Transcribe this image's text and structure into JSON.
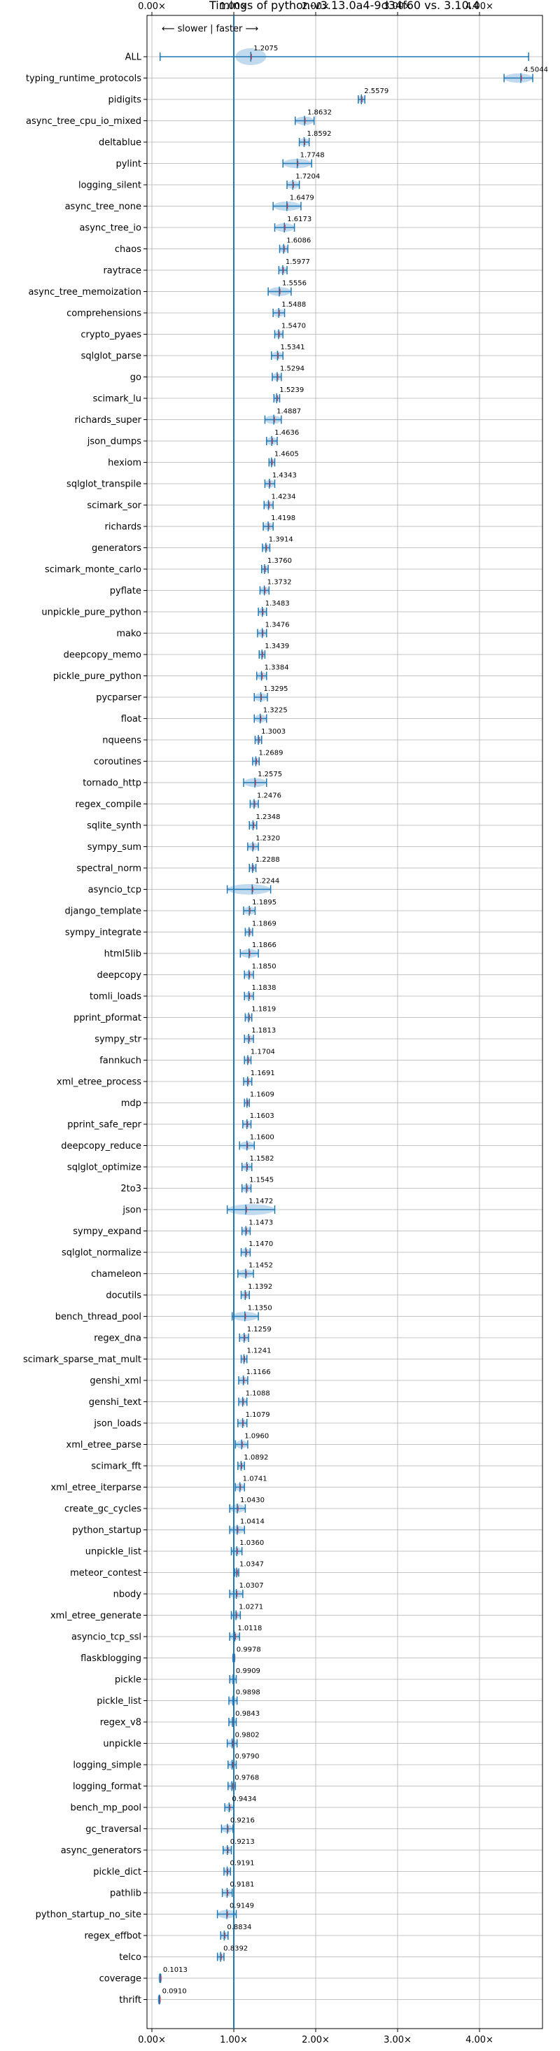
{
  "chart_data": {
    "type": "violin",
    "title": "Timings of python-v3.13.0a4-9d34f60 vs. 3.10.4",
    "subtitle": "⟵ slower | faster ⟶",
    "xlabel": "",
    "ylabel": "",
    "xlim": [
      0,
      4.5
    ],
    "xticks": [
      0,
      1,
      2,
      3,
      4
    ],
    "xtick_labels": [
      "0.00×",
      "1.00×",
      "2.00×",
      "3.00×",
      "4.00×"
    ],
    "reference_line": 1.0,
    "grid": true,
    "color": "#1f77b4",
    "fill_color": "#aecde8",
    "median_color": "#d62728",
    "benchmarks": [
      {
        "name": "ALL",
        "value": 1.2075,
        "value_label": "1.2075",
        "low": 0.1,
        "high": 4.6
      },
      {
        "name": "typing_runtime_protocols",
        "value": 4.5044,
        "value_label": "4.5044",
        "low": 4.3,
        "high": 4.65
      },
      {
        "name": "pidigits",
        "value": 2.5579,
        "value_label": "2.5579",
        "low": 2.52,
        "high": 2.6
      },
      {
        "name": "async_tree_cpu_io_mixed",
        "value": 1.8632,
        "value_label": "1.8632",
        "low": 1.75,
        "high": 1.98
      },
      {
        "name": "deltablue",
        "value": 1.8592,
        "value_label": "1.8592",
        "low": 1.8,
        "high": 1.92
      },
      {
        "name": "pylint",
        "value": 1.7748,
        "value_label": "1.7748",
        "low": 1.6,
        "high": 1.95
      },
      {
        "name": "logging_silent",
        "value": 1.7204,
        "value_label": "1.7204",
        "low": 1.65,
        "high": 1.8
      },
      {
        "name": "async_tree_none",
        "value": 1.6479,
        "value_label": "1.6479",
        "low": 1.48,
        "high": 1.82
      },
      {
        "name": "async_tree_io",
        "value": 1.6173,
        "value_label": "1.6173",
        "low": 1.5,
        "high": 1.74
      },
      {
        "name": "chaos",
        "value": 1.6086,
        "value_label": "1.6086",
        "low": 1.56,
        "high": 1.66
      },
      {
        "name": "raytrace",
        "value": 1.5977,
        "value_label": "1.5977",
        "low": 1.55,
        "high": 1.65
      },
      {
        "name": "async_tree_memoization",
        "value": 1.5556,
        "value_label": "1.5556",
        "low": 1.42,
        "high": 1.7
      },
      {
        "name": "comprehensions",
        "value": 1.5488,
        "value_label": "1.5488",
        "low": 1.48,
        "high": 1.62
      },
      {
        "name": "crypto_pyaes",
        "value": 1.547,
        "value_label": "1.5470",
        "low": 1.5,
        "high": 1.6
      },
      {
        "name": "sqlglot_parse",
        "value": 1.5341,
        "value_label": "1.5341",
        "low": 1.46,
        "high": 1.6
      },
      {
        "name": "go",
        "value": 1.5294,
        "value_label": "1.5294",
        "low": 1.47,
        "high": 1.58
      },
      {
        "name": "scimark_lu",
        "value": 1.5239,
        "value_label": "1.5239",
        "low": 1.49,
        "high": 1.56
      },
      {
        "name": "richards_super",
        "value": 1.4887,
        "value_label": "1.4887",
        "low": 1.38,
        "high": 1.58
      },
      {
        "name": "json_dumps",
        "value": 1.4636,
        "value_label": "1.4636",
        "low": 1.4,
        "high": 1.53
      },
      {
        "name": "hexiom",
        "value": 1.4605,
        "value_label": "1.4605",
        "low": 1.43,
        "high": 1.5
      },
      {
        "name": "sqlglot_transpile",
        "value": 1.4343,
        "value_label": "1.4343",
        "low": 1.38,
        "high": 1.5
      },
      {
        "name": "scimark_sor",
        "value": 1.4234,
        "value_label": "1.4234",
        "low": 1.37,
        "high": 1.48
      },
      {
        "name": "richards",
        "value": 1.4198,
        "value_label": "1.4198",
        "low": 1.36,
        "high": 1.48
      },
      {
        "name": "generators",
        "value": 1.3914,
        "value_label": "1.3914",
        "low": 1.35,
        "high": 1.44
      },
      {
        "name": "scimark_monte_carlo",
        "value": 1.376,
        "value_label": "1.3760",
        "low": 1.34,
        "high": 1.42
      },
      {
        "name": "pyflate",
        "value": 1.3732,
        "value_label": "1.3732",
        "low": 1.32,
        "high": 1.43
      },
      {
        "name": "unpickle_pure_python",
        "value": 1.3483,
        "value_label": "1.3483",
        "low": 1.3,
        "high": 1.4
      },
      {
        "name": "mako",
        "value": 1.3476,
        "value_label": "1.3476",
        "low": 1.29,
        "high": 1.4
      },
      {
        "name": "deepcopy_memo",
        "value": 1.3439,
        "value_label": "1.3439",
        "low": 1.31,
        "high": 1.38
      },
      {
        "name": "pickle_pure_python",
        "value": 1.3384,
        "value_label": "1.3384",
        "low": 1.28,
        "high": 1.4
      },
      {
        "name": "pycparser",
        "value": 1.3295,
        "value_label": "1.3295",
        "low": 1.25,
        "high": 1.41
      },
      {
        "name": "float",
        "value": 1.3225,
        "value_label": "1.3225",
        "low": 1.25,
        "high": 1.4
      },
      {
        "name": "nqueens",
        "value": 1.3003,
        "value_label": "1.3003",
        "low": 1.26,
        "high": 1.34
      },
      {
        "name": "coroutines",
        "value": 1.2689,
        "value_label": "1.2689",
        "low": 1.23,
        "high": 1.31
      },
      {
        "name": "tornado_http",
        "value": 1.2575,
        "value_label": "1.2575",
        "low": 1.12,
        "high": 1.4
      },
      {
        "name": "regex_compile",
        "value": 1.2476,
        "value_label": "1.2476",
        "low": 1.2,
        "high": 1.3
      },
      {
        "name": "sqlite_synth",
        "value": 1.2348,
        "value_label": "1.2348",
        "low": 1.19,
        "high": 1.28
      },
      {
        "name": "sympy_sum",
        "value": 1.232,
        "value_label": "1.2320",
        "low": 1.17,
        "high": 1.3
      },
      {
        "name": "spectral_norm",
        "value": 1.2288,
        "value_label": "1.2288",
        "low": 1.19,
        "high": 1.27
      },
      {
        "name": "asyncio_tcp",
        "value": 1.2244,
        "value_label": "1.2244",
        "low": 0.92,
        "high": 1.45
      },
      {
        "name": "django_template",
        "value": 1.1895,
        "value_label": "1.1895",
        "low": 1.12,
        "high": 1.26
      },
      {
        "name": "sympy_integrate",
        "value": 1.1869,
        "value_label": "1.1869",
        "low": 1.14,
        "high": 1.23
      },
      {
        "name": "html5lib",
        "value": 1.1866,
        "value_label": "1.1866",
        "low": 1.08,
        "high": 1.3
      },
      {
        "name": "deepcopy",
        "value": 1.185,
        "value_label": "1.1850",
        "low": 1.13,
        "high": 1.24
      },
      {
        "name": "tomli_loads",
        "value": 1.1838,
        "value_label": "1.1838",
        "low": 1.13,
        "high": 1.24
      },
      {
        "name": "pprint_pformat",
        "value": 1.1819,
        "value_label": "1.1819",
        "low": 1.14,
        "high": 1.22
      },
      {
        "name": "sympy_str",
        "value": 1.1813,
        "value_label": "1.1813",
        "low": 1.13,
        "high": 1.24
      },
      {
        "name": "fannkuch",
        "value": 1.1704,
        "value_label": "1.1704",
        "low": 1.13,
        "high": 1.21
      },
      {
        "name": "xml_etree_process",
        "value": 1.1691,
        "value_label": "1.1691",
        "low": 1.12,
        "high": 1.22
      },
      {
        "name": "mdp",
        "value": 1.1609,
        "value_label": "1.1609",
        "low": 1.13,
        "high": 1.19
      },
      {
        "name": "pprint_safe_repr",
        "value": 1.1603,
        "value_label": "1.1603",
        "low": 1.11,
        "high": 1.21
      },
      {
        "name": "deepcopy_reduce",
        "value": 1.16,
        "value_label": "1.1600",
        "low": 1.07,
        "high": 1.25
      },
      {
        "name": "sqlglot_optimize",
        "value": 1.1582,
        "value_label": "1.1582",
        "low": 1.1,
        "high": 1.22
      },
      {
        "name": "2to3",
        "value": 1.1545,
        "value_label": "1.1545",
        "low": 1.1,
        "high": 1.21
      },
      {
        "name": "json",
        "value": 1.1472,
        "value_label": "1.1472",
        "low": 0.92,
        "high": 1.5
      },
      {
        "name": "sympy_expand",
        "value": 1.1473,
        "value_label": "1.1473",
        "low": 1.1,
        "high": 1.2
      },
      {
        "name": "sqlglot_normalize",
        "value": 1.147,
        "value_label": "1.1470",
        "low": 1.09,
        "high": 1.2
      },
      {
        "name": "chameleon",
        "value": 1.1452,
        "value_label": "1.1452",
        "low": 1.05,
        "high": 1.24
      },
      {
        "name": "docutils",
        "value": 1.1392,
        "value_label": "1.1392",
        "low": 1.09,
        "high": 1.19
      },
      {
        "name": "bench_thread_pool",
        "value": 1.135,
        "value_label": "1.1350",
        "low": 0.98,
        "high": 1.3
      },
      {
        "name": "regex_dna",
        "value": 1.1259,
        "value_label": "1.1259",
        "low": 1.07,
        "high": 1.18
      },
      {
        "name": "scimark_sparse_mat_mult",
        "value": 1.1241,
        "value_label": "1.1241",
        "low": 1.09,
        "high": 1.16
      },
      {
        "name": "genshi_xml",
        "value": 1.1166,
        "value_label": "1.1166",
        "low": 1.06,
        "high": 1.17
      },
      {
        "name": "genshi_text",
        "value": 1.1088,
        "value_label": "1.1088",
        "low": 1.06,
        "high": 1.16
      },
      {
        "name": "json_loads",
        "value": 1.1079,
        "value_label": "1.1079",
        "low": 1.05,
        "high": 1.16
      },
      {
        "name": "xml_etree_parse",
        "value": 1.096,
        "value_label": "1.0960",
        "low": 1.02,
        "high": 1.17
      },
      {
        "name": "scimark_fft",
        "value": 1.0892,
        "value_label": "1.0892",
        "low": 1.05,
        "high": 1.13
      },
      {
        "name": "xml_etree_iterparse",
        "value": 1.0741,
        "value_label": "1.0741",
        "low": 1.02,
        "high": 1.13
      },
      {
        "name": "create_gc_cycles",
        "value": 1.043,
        "value_label": "1.0430",
        "low": 0.95,
        "high": 1.14
      },
      {
        "name": "python_startup",
        "value": 1.0414,
        "value_label": "1.0414",
        "low": 0.95,
        "high": 1.13
      },
      {
        "name": "unpickle_list",
        "value": 1.036,
        "value_label": "1.0360",
        "low": 0.97,
        "high": 1.1
      },
      {
        "name": "meteor_contest",
        "value": 1.0347,
        "value_label": "1.0347",
        "low": 1.01,
        "high": 1.06
      },
      {
        "name": "nbody",
        "value": 1.0307,
        "value_label": "1.0307",
        "low": 0.95,
        "high": 1.11
      },
      {
        "name": "xml_etree_generate",
        "value": 1.0271,
        "value_label": "1.0271",
        "low": 0.97,
        "high": 1.08
      },
      {
        "name": "asyncio_tcp_ssl",
        "value": 1.0118,
        "value_label": "1.0118",
        "low": 0.95,
        "high": 1.07
      },
      {
        "name": "flaskblogging",
        "value": 0.9978,
        "value_label": "0.9978",
        "low": 0.99,
        "high": 1.01
      },
      {
        "name": "pickle",
        "value": 0.9909,
        "value_label": "0.9909",
        "low": 0.95,
        "high": 1.03
      },
      {
        "name": "pickle_list",
        "value": 0.9898,
        "value_label": "0.9898",
        "low": 0.94,
        "high": 1.04
      },
      {
        "name": "regex_v8",
        "value": 0.9843,
        "value_label": "0.9843",
        "low": 0.94,
        "high": 1.03
      },
      {
        "name": "unpickle",
        "value": 0.9802,
        "value_label": "0.9802",
        "low": 0.92,
        "high": 1.04
      },
      {
        "name": "logging_simple",
        "value": 0.979,
        "value_label": "0.9790",
        "low": 0.93,
        "high": 1.03
      },
      {
        "name": "logging_format",
        "value": 0.9768,
        "value_label": "0.9768",
        "low": 0.93,
        "high": 1.02
      },
      {
        "name": "bench_mp_pool",
        "value": 0.9434,
        "value_label": "0.9434",
        "low": 0.89,
        "high": 1.0
      },
      {
        "name": "gc_traversal",
        "value": 0.9216,
        "value_label": "0.9216",
        "low": 0.85,
        "high": 0.99
      },
      {
        "name": "async_generators",
        "value": 0.9213,
        "value_label": "0.9213",
        "low": 0.87,
        "high": 0.97
      },
      {
        "name": "pickle_dict",
        "value": 0.9191,
        "value_label": "0.9191",
        "low": 0.88,
        "high": 0.96
      },
      {
        "name": "pathlib",
        "value": 0.9181,
        "value_label": "0.9181",
        "low": 0.86,
        "high": 0.98
      },
      {
        "name": "python_startup_no_site",
        "value": 0.9149,
        "value_label": "0.9149",
        "low": 0.8,
        "high": 1.03
      },
      {
        "name": "regex_effbot",
        "value": 0.8834,
        "value_label": "0.8834",
        "low": 0.84,
        "high": 0.93
      },
      {
        "name": "telco",
        "value": 0.8392,
        "value_label": "0.8392",
        "low": 0.8,
        "high": 0.88
      },
      {
        "name": "coverage",
        "value": 0.1013,
        "value_label": "0.1013",
        "low": 0.095,
        "high": 0.108
      },
      {
        "name": "thrift",
        "value": 0.091,
        "value_label": "0.0910",
        "low": 0.085,
        "high": 0.097
      }
    ]
  }
}
